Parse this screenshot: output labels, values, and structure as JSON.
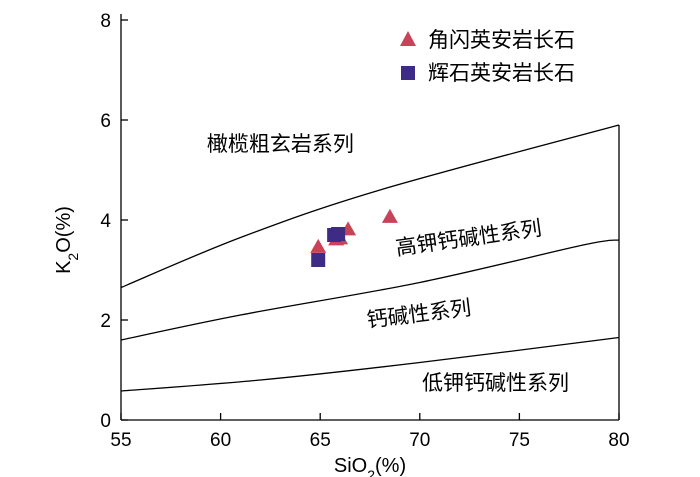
{
  "chart_data": {
    "type": "scatter",
    "title": "",
    "xlabel": {
      "main": "SiO",
      "sub": "2",
      "unit": "(%)"
    },
    "ylabel": {
      "main": "K",
      "sub": "2",
      "rest": "O(%)"
    },
    "xlim": [
      55,
      80
    ],
    "ylim": [
      0,
      8
    ],
    "xticks": [
      55,
      60,
      65,
      70,
      75,
      80
    ],
    "yticks": [
      0,
      2,
      4,
      6,
      8
    ],
    "grid": false,
    "legend_position": "top-right",
    "series": [
      {
        "name": "角闪英安岩长石",
        "marker": "triangle",
        "color": "#c8435a",
        "points": [
          [
            64.9,
            3.45
          ],
          [
            65.8,
            3.6
          ],
          [
            66.0,
            3.62
          ],
          [
            66.4,
            3.8
          ],
          [
            68.5,
            4.05
          ]
        ]
      },
      {
        "name": "辉石英安岩长石",
        "marker": "square",
        "color": "#3d2b86",
        "points": [
          [
            64.9,
            3.2
          ],
          [
            65.7,
            3.7
          ],
          [
            65.9,
            3.72
          ]
        ]
      }
    ],
    "boundaries": [
      {
        "name": "upper",
        "points": [
          [
            55,
            2.65
          ],
          [
            61,
            3.65
          ],
          [
            68,
            4.6
          ],
          [
            80,
            5.9
          ]
        ]
      },
      {
        "name": "middle",
        "points": [
          [
            55,
            1.6
          ],
          [
            61,
            2.1
          ],
          [
            70,
            2.75
          ],
          [
            78.2,
            3.5
          ],
          [
            80,
            3.6
          ]
        ]
      },
      {
        "name": "lower",
        "points": [
          [
            55,
            0.58
          ],
          [
            62,
            0.8
          ],
          [
            70,
            1.15
          ],
          [
            80,
            1.65
          ]
        ]
      }
    ],
    "region_labels": [
      {
        "text": "橄榄粗玄岩系列",
        "x": 63.0,
        "y": 5.38,
        "rotate": 0
      },
      {
        "text": "高钾钙碱性系列",
        "x": 72.5,
        "y": 3.5,
        "rotate": -8
      },
      {
        "text": "钙碱性系列",
        "x": 70.0,
        "y": 1.98,
        "rotate": -7
      },
      {
        "text": "低钾钙碱性系列",
        "x": 73.8,
        "y": 0.6,
        "rotate": 0
      }
    ]
  }
}
